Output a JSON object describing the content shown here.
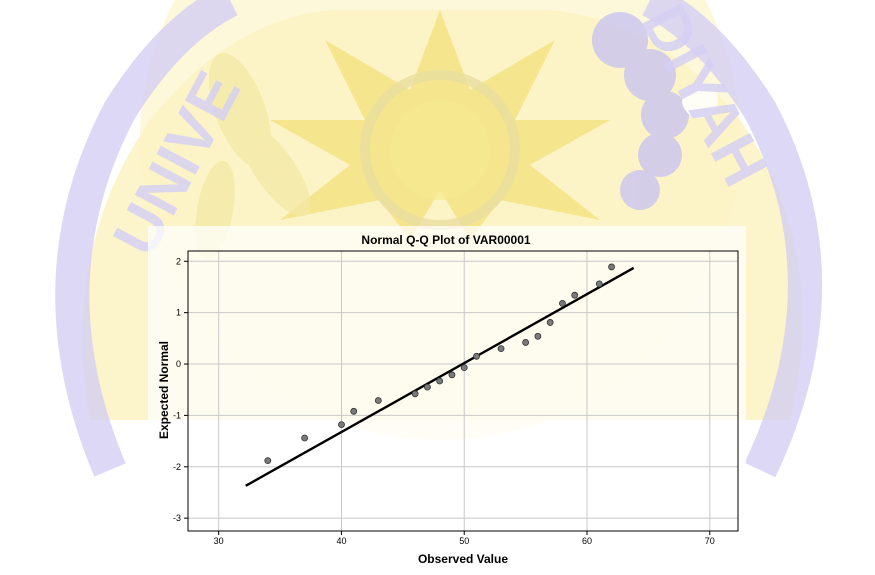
{
  "watermark": {
    "arc_text_left": "UNIVE",
    "arc_text_right": "DIYAH",
    "colors": {
      "background": "#ffffff",
      "gold": "#f7e68c",
      "gold_light": "#fbf3c2",
      "purple": "#c9c4ee",
      "purple_light": "#e2def6"
    }
  },
  "chart_data": {
    "type": "scatter",
    "title": "Normal Q-Q Plot of VAR00001",
    "xlabel": "Observed Value",
    "ylabel": "Expected Normal",
    "xlim": [
      27.5,
      72.3
    ],
    "ylim": [
      -3.25,
      2.2
    ],
    "x_ticks": [
      30,
      40,
      50,
      60,
      70
    ],
    "y_ticks": [
      2,
      1,
      0,
      -1,
      -2,
      -3
    ],
    "grid": true,
    "legend": "none",
    "points": [
      {
        "x": 34,
        "y": -1.88
      },
      {
        "x": 37,
        "y": -1.44
      },
      {
        "x": 40,
        "y": -1.18
      },
      {
        "x": 41,
        "y": -0.92
      },
      {
        "x": 43,
        "y": -0.71
      },
      {
        "x": 46,
        "y": -0.58
      },
      {
        "x": 47,
        "y": -0.45
      },
      {
        "x": 48,
        "y": -0.33
      },
      {
        "x": 49,
        "y": -0.21
      },
      {
        "x": 50,
        "y": -0.07
      },
      {
        "x": 51,
        "y": 0.15
      },
      {
        "x": 53,
        "y": 0.3
      },
      {
        "x": 55,
        "y": 0.42
      },
      {
        "x": 56,
        "y": 0.54
      },
      {
        "x": 57,
        "y": 0.81
      },
      {
        "x": 58,
        "y": 1.18
      },
      {
        "x": 59,
        "y": 1.34
      },
      {
        "x": 61,
        "y": 1.56
      },
      {
        "x": 62,
        "y": 1.89
      }
    ],
    "reference_line": {
      "x": [
        32.2,
        63.8
      ],
      "y": [
        -2.37,
        1.87
      ]
    },
    "colors": {
      "point_fill": "#7a7a7a",
      "point_stroke": "#333333",
      "line": "#000000",
      "grid": "#c8c8c8",
      "axis": "#000000",
      "text": "#000000"
    }
  }
}
